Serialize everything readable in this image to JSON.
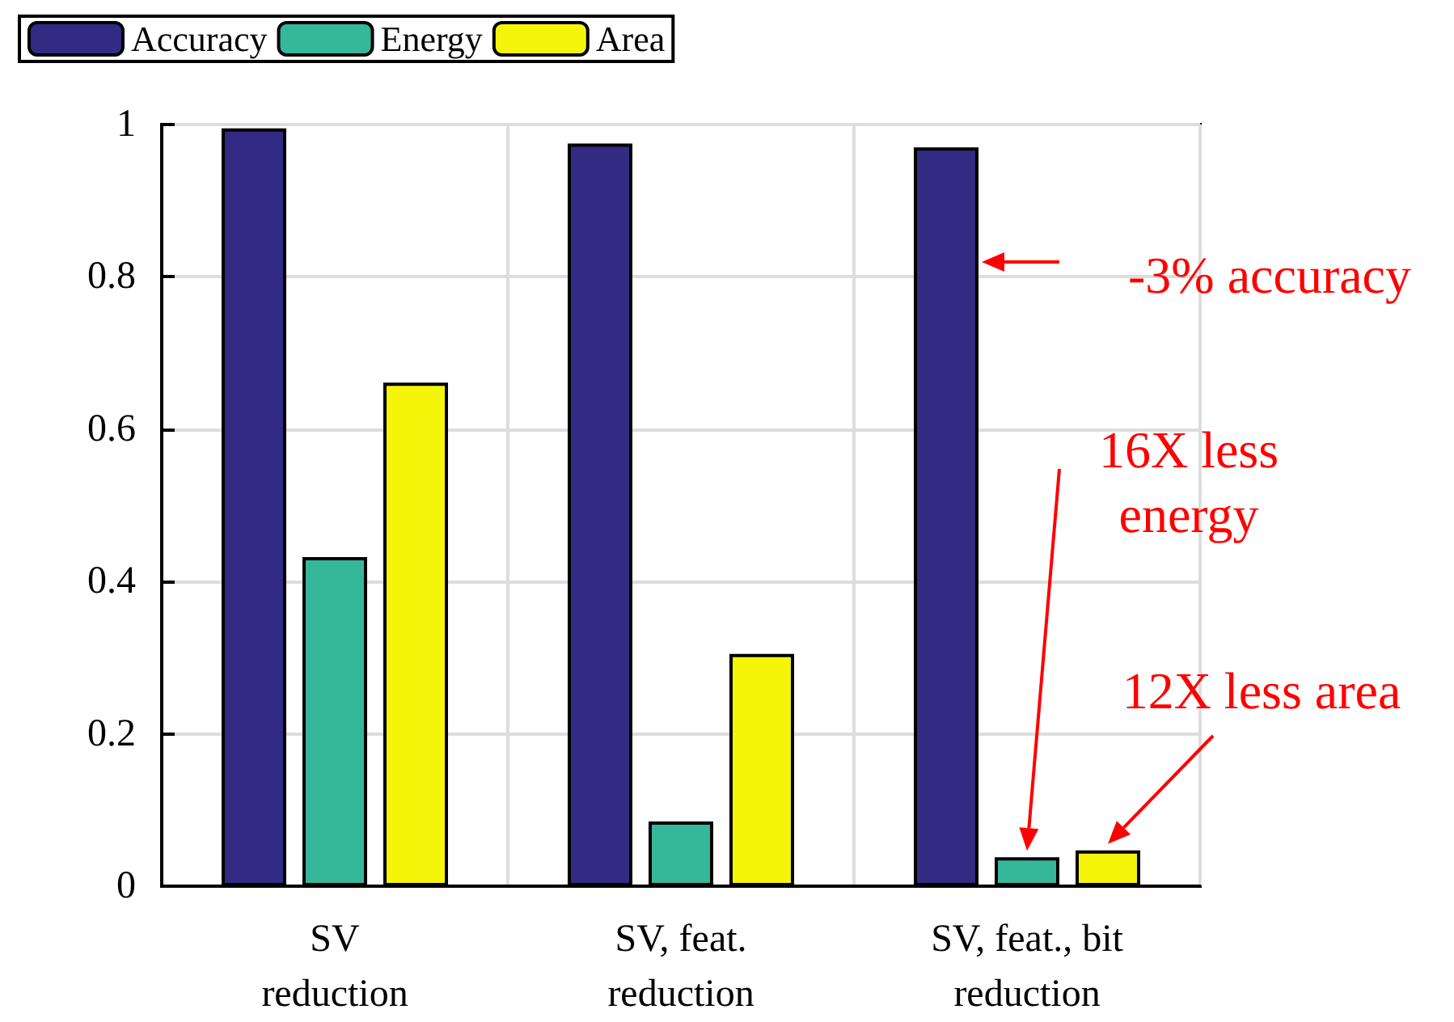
{
  "chart_data": {
    "type": "bar",
    "categories": [
      "SV\nreduction",
      "SV, feat.\nreduction",
      "SV, feat., bit\nreduction"
    ],
    "series": [
      {
        "name": "Accuracy",
        "color": "#332b83",
        "values": [
          0.995,
          0.975,
          0.97
        ]
      },
      {
        "name": "Energy",
        "color": "#35b79a",
        "values": [
          0.432,
          0.085,
          0.038
        ]
      },
      {
        "name": "Area",
        "color": "#f5f50a",
        "values": [
          0.661,
          0.305,
          0.047
        ]
      }
    ],
    "ylim": [
      0,
      1
    ],
    "yticks": [
      0,
      0.2,
      0.4,
      0.6,
      0.8,
      1
    ],
    "grid": true,
    "legend": "top left",
    "annotations": [
      "-3% accuracy",
      "16X less\nenergy",
      "12X less area"
    ]
  }
}
